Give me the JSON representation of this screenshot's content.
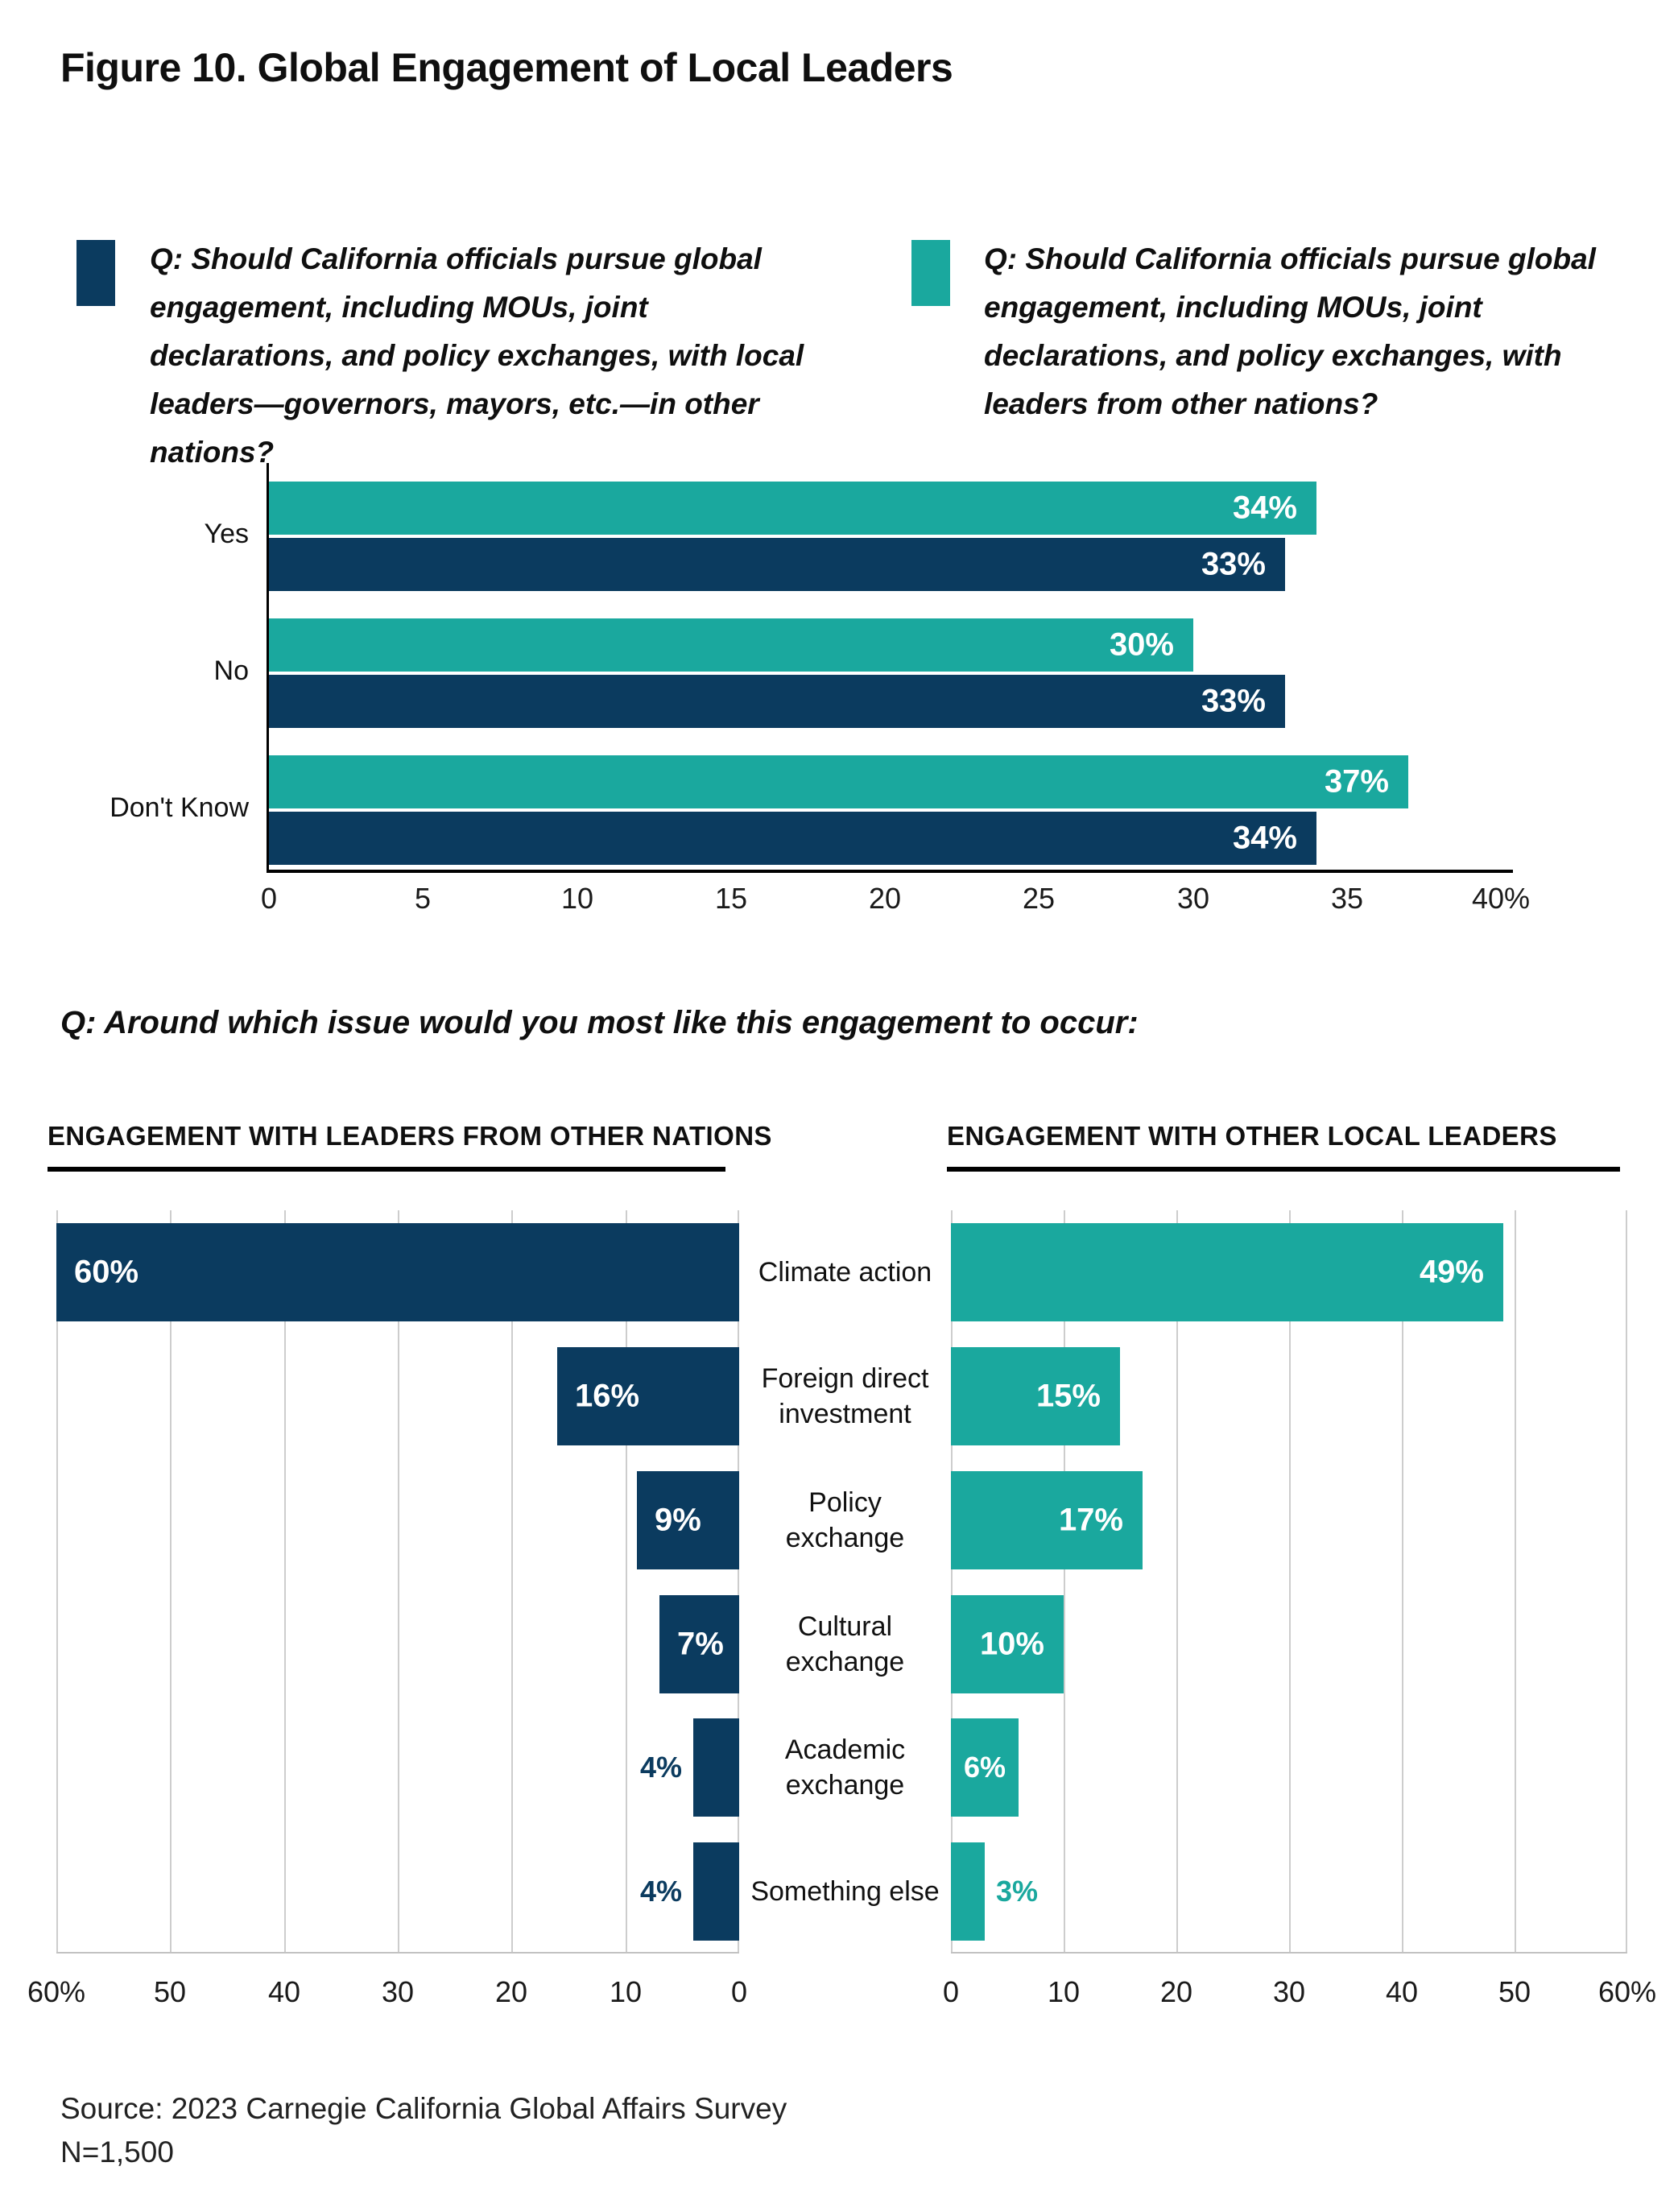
{
  "figure": {
    "title": "Figure 10. Global Engagement of Local Leaders",
    "source_line1": "Source: 2023 Carnegie California Global Affairs Survey",
    "source_line2": "N=1,500"
  },
  "colors": {
    "navy": "#0b3b5f",
    "teal": "#1aa89e",
    "grid": "#cdcdcd",
    "axis": "#000000",
    "text": "#111111"
  },
  "legend": [
    {
      "color_key": "navy",
      "label": "Q: Should California officials pursue global engagement, including MOUs, joint declarations, and policy exchanges, with local leaders—governors, mayors, etc.—in other nations?"
    },
    {
      "color_key": "teal",
      "label": "Q: Should California officials pursue global engagement, including MOUs, joint declarations, and policy exchanges, with leaders from other nations?"
    }
  ],
  "question2": "Q: Around which issue would you most like this engagement to occur:",
  "chart_data": [
    {
      "name": "global-engagement-opinion",
      "type": "bar",
      "orientation": "horizontal",
      "categories": [
        "Yes",
        "No",
        "Don't Know"
      ],
      "series": [
        {
          "name": "with leaders from other nations",
          "color_key": "teal",
          "values": [
            34,
            30,
            37
          ]
        },
        {
          "name": "with local leaders in other nations",
          "color_key": "navy",
          "values": [
            33,
            33,
            34
          ]
        }
      ],
      "xlim": [
        0,
        40
      ],
      "ticks": [
        {
          "value": 0,
          "label": "0"
        },
        {
          "value": 5,
          "label": "5"
        },
        {
          "value": 10,
          "label": "10"
        },
        {
          "value": 15,
          "label": "15"
        },
        {
          "value": 20,
          "label": "20"
        },
        {
          "value": 25,
          "label": "25"
        },
        {
          "value": 30,
          "label": "30"
        },
        {
          "value": 35,
          "label": "35"
        },
        {
          "value": 40,
          "label": "40%"
        }
      ],
      "grid": false,
      "value_label_format": "percent"
    },
    {
      "name": "engagement-with-leaders-from-other-nations",
      "title": "ENGAGEMENT WITH LEADERS FROM OTHER NATIONS",
      "type": "bar",
      "orientation": "horizontal-right-anchored",
      "categories": [
        "Climate action",
        "Foreign direct\ninvestment",
        "Policy\nexchange",
        "Cultural\nexchange",
        "Academic\nexchange",
        "Something else"
      ],
      "values": [
        60,
        16,
        9,
        7,
        4,
        4
      ],
      "color_key": "navy",
      "xlim": [
        0,
        60
      ],
      "ticks": [
        {
          "value": 60,
          "label": "60%"
        },
        {
          "value": 50,
          "label": "50"
        },
        {
          "value": 40,
          "label": "40"
        },
        {
          "value": 30,
          "label": "30"
        },
        {
          "value": 20,
          "label": "20"
        },
        {
          "value": 10,
          "label": "10"
        },
        {
          "value": 0,
          "label": "0"
        }
      ],
      "grid": true,
      "value_label_format": "percent"
    },
    {
      "name": "engagement-with-other-local-leaders",
      "title": "ENGAGEMENT WITH OTHER LOCAL LEADERS",
      "type": "bar",
      "orientation": "horizontal",
      "categories": [
        "Climate action",
        "Foreign direct\ninvestment",
        "Policy\nexchange",
        "Cultural\nexchange",
        "Academic\nexchange",
        "Something else"
      ],
      "values": [
        49,
        15,
        17,
        10,
        6,
        3
      ],
      "color_key": "teal",
      "xlim": [
        0,
        60
      ],
      "ticks": [
        {
          "value": 0,
          "label": "0"
        },
        {
          "value": 10,
          "label": "10"
        },
        {
          "value": 20,
          "label": "20"
        },
        {
          "value": 30,
          "label": "30"
        },
        {
          "value": 40,
          "label": "40"
        },
        {
          "value": 50,
          "label": "50"
        },
        {
          "value": 60,
          "label": "60%"
        }
      ],
      "grid": true,
      "value_label_format": "percent"
    }
  ]
}
